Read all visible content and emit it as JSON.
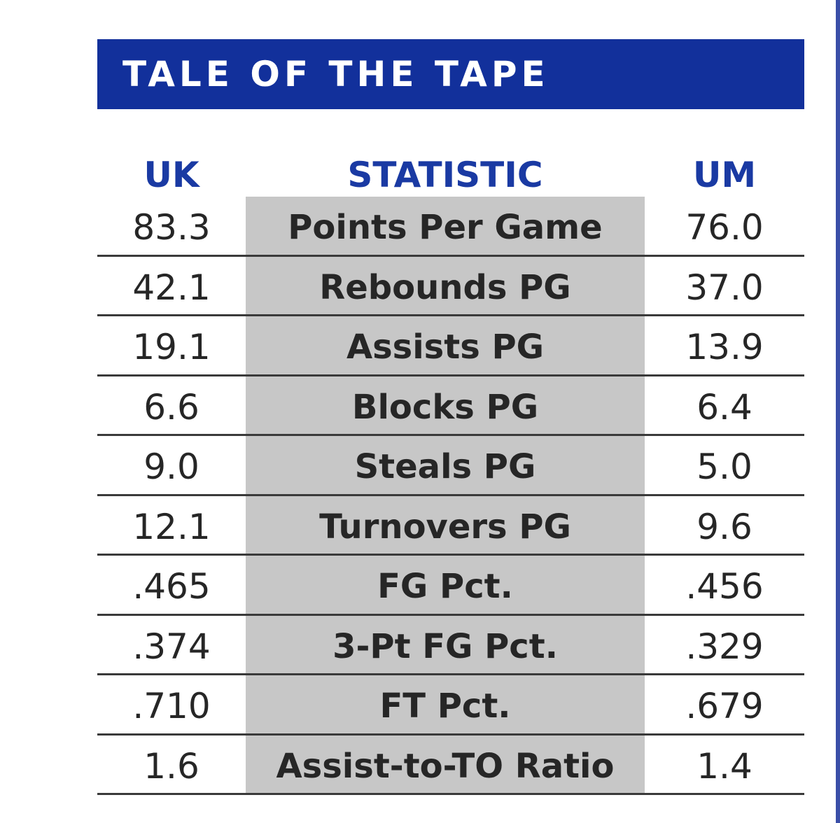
{
  "title": "TALE OF THE TAPE",
  "headers": {
    "left": "UK",
    "middle": "STATISTIC",
    "right": "UM"
  },
  "rows": [
    {
      "uk": "83.3",
      "stat": "Points Per Game",
      "um": "76.0"
    },
    {
      "uk": "42.1",
      "stat": "Rebounds PG",
      "um": "37.0"
    },
    {
      "uk": "19.1",
      "stat": "Assists PG",
      "um": "13.9"
    },
    {
      "uk": "6.6",
      "stat": "Blocks PG",
      "um": "6.4"
    },
    {
      "uk": "9.0",
      "stat": "Steals PG",
      "um": "5.0"
    },
    {
      "uk": "12.1",
      "stat": "Turnovers PG",
      "um": "9.6"
    },
    {
      "uk": ".465",
      "stat": "FG Pct.",
      "um": ".456"
    },
    {
      "uk": ".374",
      "stat": "3-Pt FG Pct.",
      "um": ".329"
    },
    {
      "uk": ".710",
      "stat": "FT Pct.",
      "um": ".679"
    },
    {
      "uk": "1.6",
      "stat": "Assist-to-TO Ratio",
      "um": "1.4"
    }
  ],
  "colors": {
    "title_bar": "#12309b",
    "header_text": "#1a3aa3",
    "stat_column_shade": "#c7c7c7",
    "row_rule": "#3a3a3a"
  }
}
